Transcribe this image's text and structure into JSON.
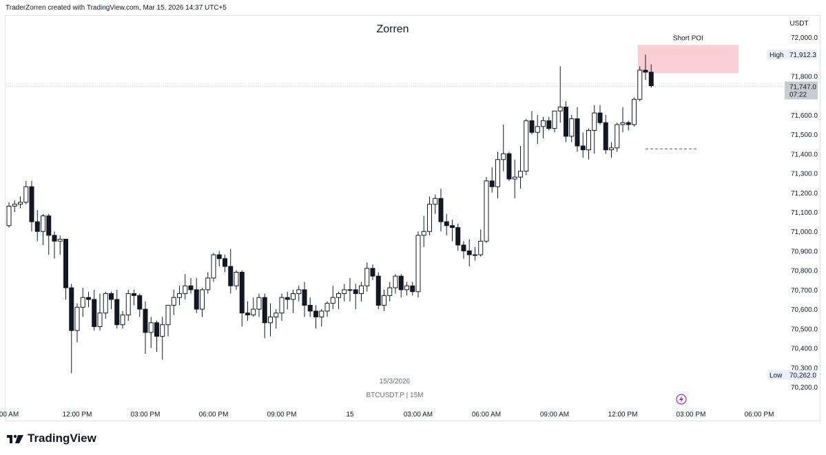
{
  "credit": "TraderZorren created with TradingView.com, Mar 15, 2026 14:37 UTC+5",
  "brand": "TradingView",
  "chart_data": {
    "type": "candlestick",
    "title": "Zorren",
    "symbol_line": "BTCUSDT.P | 15M",
    "date_label": "15/3/2026",
    "currency": "USDT",
    "ylim": [
      70150,
      72100
    ],
    "y_ticks": [
      {
        "value": 72000,
        "label": "72,000.0"
      },
      {
        "value": 71800,
        "label": "71,800.0"
      },
      {
        "value": 71600,
        "label": "71,600.0"
      },
      {
        "value": 71500,
        "label": "71,500.0"
      },
      {
        "value": 71400,
        "label": "71,400.0"
      },
      {
        "value": 71300,
        "label": "71,300.0"
      },
      {
        "value": 71200,
        "label": "71,200.0"
      },
      {
        "value": 71100,
        "label": "71,100.0"
      },
      {
        "value": 71000,
        "label": "71,000.0"
      },
      {
        "value": 70900,
        "label": "70,900.0"
      },
      {
        "value": 70800,
        "label": "70,800.0"
      },
      {
        "value": 70700,
        "label": "70,700.0"
      },
      {
        "value": 70600,
        "label": "70,600.0"
      },
      {
        "value": 70500,
        "label": "70,500.0"
      },
      {
        "value": 70400,
        "label": "70,400.0"
      },
      {
        "value": 70300,
        "label": "70,300.0"
      },
      {
        "value": 70200,
        "label": "70,200.0"
      }
    ],
    "x_ticks": [
      {
        "index": 0,
        "label": "00 AM"
      },
      {
        "index": 12,
        "label": "12:00 PM"
      },
      {
        "index": 24,
        "label": "03:00 PM"
      },
      {
        "index": 36,
        "label": "06:00 PM"
      },
      {
        "index": 48,
        "label": "09:00 PM"
      },
      {
        "index": 60,
        "label": "15"
      },
      {
        "index": 72,
        "label": "03:00 AM"
      },
      {
        "index": 84,
        "label": "06:00 AM"
      },
      {
        "index": 96,
        "label": "09:00 AM"
      },
      {
        "index": 108,
        "label": "12:00 PM"
      },
      {
        "index": 120,
        "label": "03:00 PM"
      },
      {
        "index": 132,
        "label": "06:00 PM"
      }
    ],
    "high": {
      "label": "High",
      "value": "71,912.3",
      "price": 71912.3
    },
    "low": {
      "label": "Low",
      "value": "70,262.0",
      "price": 70262
    },
    "last_price": {
      "value": "71,747.0",
      "countdown": "07:22",
      "price": 71747
    },
    "zone": {
      "label": "Short POI",
      "top": 71960,
      "bottom": 71815,
      "start_index": 111,
      "end_index": 128
    },
    "dashed_level": {
      "price": 71425,
      "start_index": 112,
      "end_index": 120
    },
    "candles": [
      [
        71030,
        71150,
        71020,
        71130
      ],
      [
        71130,
        71160,
        71100,
        71140
      ],
      [
        71140,
        71180,
        71120,
        71150
      ],
      [
        71150,
        71260,
        71140,
        71230
      ],
      [
        71230,
        71260,
        71000,
        71050
      ],
      [
        71050,
        71110,
        70950,
        71000
      ],
      [
        71000,
        71090,
        70930,
        71080
      ],
      [
        71080,
        71090,
        70880,
        70980
      ],
      [
        70980,
        71000,
        70860,
        70950
      ],
      [
        70950,
        70980,
        70880,
        70960
      ],
      [
        70960,
        70960,
        70650,
        70710
      ],
      [
        70710,
        70730,
        70270,
        70490
      ],
      [
        70490,
        70630,
        70430,
        70610
      ],
      [
        70610,
        70710,
        70560,
        70660
      ],
      [
        70660,
        70690,
        70610,
        70650
      ],
      [
        70650,
        70700,
        70490,
        70510
      ],
      [
        70510,
        70680,
        70490,
        70580
      ],
      [
        70580,
        70690,
        70550,
        70680
      ],
      [
        70680,
        70690,
        70600,
        70650
      ],
      [
        70650,
        70700,
        70500,
        70520
      ],
      [
        70520,
        70590,
        70500,
        70570
      ],
      [
        70570,
        70700,
        70540,
        70680
      ],
      [
        70680,
        70700,
        70620,
        70670
      ],
      [
        70670,
        70680,
        70560,
        70600
      ],
      [
        70600,
        70640,
        70370,
        70480
      ],
      [
        70480,
        70560,
        70400,
        70530
      ],
      [
        70530,
        70540,
        70380,
        70460
      ],
      [
        70460,
        70560,
        70340,
        70520
      ],
      [
        70520,
        70620,
        70460,
        70620
      ],
      [
        70620,
        70700,
        70570,
        70660
      ],
      [
        70660,
        70720,
        70620,
        70680
      ],
      [
        70680,
        70780,
        70650,
        70720
      ],
      [
        70720,
        70760,
        70680,
        70700
      ],
      [
        70700,
        70760,
        70580,
        70600
      ],
      [
        70600,
        70710,
        70560,
        70700
      ],
      [
        70700,
        70790,
        70680,
        70760
      ],
      [
        70760,
        70890,
        70740,
        70880
      ],
      [
        70880,
        70900,
        70820,
        70860
      ],
      [
        70860,
        70880,
        70790,
        70820
      ],
      [
        70820,
        70910,
        70680,
        70720
      ],
      [
        70720,
        70800,
        70700,
        70790
      ],
      [
        70790,
        70800,
        70510,
        70580
      ],
      [
        70580,
        70640,
        70540,
        70570
      ],
      [
        70570,
        70660,
        70560,
        70600
      ],
      [
        70600,
        70680,
        70560,
        70660
      ],
      [
        70660,
        70680,
        70450,
        70530
      ],
      [
        70530,
        70630,
        70460,
        70560
      ],
      [
        70560,
        70600,
        70500,
        70580
      ],
      [
        70580,
        70680,
        70540,
        70660
      ],
      [
        70660,
        70690,
        70600,
        70650
      ],
      [
        70650,
        70700,
        70580,
        70680
      ],
      [
        70680,
        70720,
        70640,
        70700
      ],
      [
        70700,
        70740,
        70560,
        70620
      ],
      [
        70620,
        70660,
        70560,
        70590
      ],
      [
        70590,
        70620,
        70500,
        70560
      ],
      [
        70560,
        70600,
        70510,
        70590
      ],
      [
        70590,
        70640,
        70560,
        70630
      ],
      [
        70630,
        70720,
        70600,
        70660
      ],
      [
        70660,
        70690,
        70600,
        70680
      ],
      [
        70680,
        70730,
        70640,
        70700
      ],
      [
        70700,
        70760,
        70640,
        70700
      ],
      [
        70700,
        70730,
        70600,
        70680
      ],
      [
        70680,
        70740,
        70640,
        70720
      ],
      [
        70720,
        70840,
        70690,
        70810
      ],
      [
        70810,
        70830,
        70750,
        70770
      ],
      [
        70770,
        70790,
        70600,
        70620
      ],
      [
        70620,
        70700,
        70590,
        70670
      ],
      [
        70670,
        70740,
        70640,
        70710
      ],
      [
        70710,
        70780,
        70680,
        70770
      ],
      [
        70770,
        70780,
        70660,
        70700
      ],
      [
        70700,
        70740,
        70670,
        70720
      ],
      [
        70720,
        70740,
        70670,
        70690
      ],
      [
        70690,
        71000,
        70660,
        70980
      ],
      [
        70980,
        71080,
        70920,
        71000
      ],
      [
        71000,
        71180,
        70980,
        71140
      ],
      [
        71140,
        71190,
        71090,
        71170
      ],
      [
        71170,
        71220,
        71000,
        71050
      ],
      [
        71050,
        71090,
        70980,
        71030
      ],
      [
        71030,
        71060,
        70950,
        71020
      ],
      [
        71020,
        71040,
        70900,
        70930
      ],
      [
        70930,
        70950,
        70860,
        70900
      ],
      [
        70900,
        70960,
        70820,
        70880
      ],
      [
        70880,
        70920,
        70850,
        70880
      ],
      [
        70880,
        71010,
        70870,
        70950
      ],
      [
        70950,
        71280,
        70940,
        71260
      ],
      [
        71260,
        71330,
        71200,
        71230
      ],
      [
        71230,
        71410,
        71170,
        71370
      ],
      [
        71370,
        71550,
        71310,
        71400
      ],
      [
        71400,
        71410,
        71260,
        71270
      ],
      [
        71270,
        71370,
        71170,
        71280
      ],
      [
        71280,
        71440,
        71220,
        71310
      ],
      [
        71310,
        71580,
        71290,
        71570
      ],
      [
        71570,
        71620,
        71500,
        71510
      ],
      [
        71510,
        71600,
        71450,
        71540
      ],
      [
        71540,
        71590,
        71480,
        71570
      ],
      [
        71570,
        71590,
        71520,
        71530
      ],
      [
        71530,
        71620,
        71510,
        71620
      ],
      [
        71620,
        71850,
        71560,
        71640
      ],
      [
        71640,
        71670,
        71460,
        71490
      ],
      [
        71490,
        71600,
        71460,
        71580
      ],
      [
        71580,
        71640,
        71410,
        71440
      ],
      [
        71440,
        71510,
        71380,
        71420
      ],
      [
        71420,
        71530,
        71370,
        71520
      ],
      [
        71520,
        71650,
        71400,
        71610
      ],
      [
        71610,
        71650,
        71550,
        71560
      ],
      [
        71560,
        71600,
        71400,
        71420
      ],
      [
        71420,
        71460,
        71380,
        71430
      ],
      [
        71430,
        71560,
        71410,
        71550
      ],
      [
        71550,
        71640,
        71510,
        71560
      ],
      [
        71560,
        71570,
        71520,
        71550
      ],
      [
        71550,
        71690,
        71540,
        71680
      ],
      [
        71680,
        71850,
        71670,
        71830
      ],
      [
        71830,
        71910,
        71780,
        71820
      ],
      [
        71820,
        71860,
        71740,
        71750
      ]
    ]
  }
}
